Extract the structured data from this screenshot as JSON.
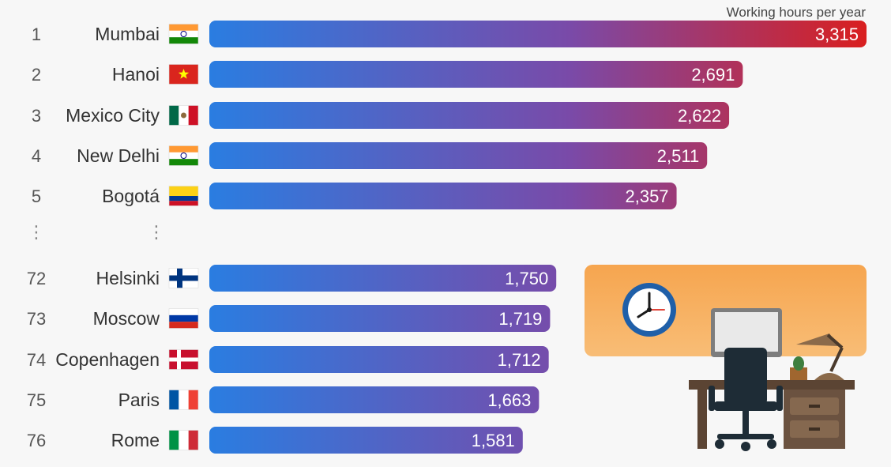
{
  "chart_data": {
    "type": "bar",
    "orientation": "horizontal",
    "unit_label": "Working hours per year",
    "title": "",
    "xlabel": "",
    "ylabel": "",
    "gap_marker": "⋮",
    "rows": [
      {
        "rank": "1",
        "city": "Mumbai",
        "flag": "india",
        "value": 3315,
        "label": "3,315"
      },
      {
        "rank": "2",
        "city": "Hanoi",
        "flag": "vietnam",
        "value": 2691,
        "label": "2,691"
      },
      {
        "rank": "3",
        "city": "Mexico City",
        "flag": "mexico",
        "value": 2622,
        "label": "2,622"
      },
      {
        "rank": "4",
        "city": "New Delhi",
        "flag": "india",
        "value": 2511,
        "label": "2,511"
      },
      {
        "rank": "5",
        "city": "Bogotá",
        "flag": "colombia",
        "value": 2357,
        "label": "2,357"
      },
      {
        "rank": "72",
        "city": "Helsinki",
        "flag": "finland",
        "value": 1750,
        "label": "1,750"
      },
      {
        "rank": "73",
        "city": "Moscow",
        "flag": "russia",
        "value": 1719,
        "label": "1,719"
      },
      {
        "rank": "74",
        "city": "Copenhagen",
        "flag": "denmark",
        "value": 1712,
        "label": "1,712"
      },
      {
        "rank": "75",
        "city": "Paris",
        "flag": "france",
        "value": 1663,
        "label": "1,663"
      },
      {
        "rank": "76",
        "city": "Rome",
        "flag": "italy",
        "value": 1581,
        "label": "1,581"
      }
    ],
    "xlim": [
      0,
      3315
    ],
    "grid": false,
    "legend": "none",
    "colors": {
      "bar_start": "#2a7de1",
      "bar_mid": "#7a4aa8",
      "bar_end": "#d91f1f",
      "illustration_bg": "#f6ad5c",
      "clock_ring": "#1f5fa8"
    }
  },
  "illustration": {
    "clock_icon": "clock-icon",
    "desk_icon": "office-desk-icon"
  }
}
